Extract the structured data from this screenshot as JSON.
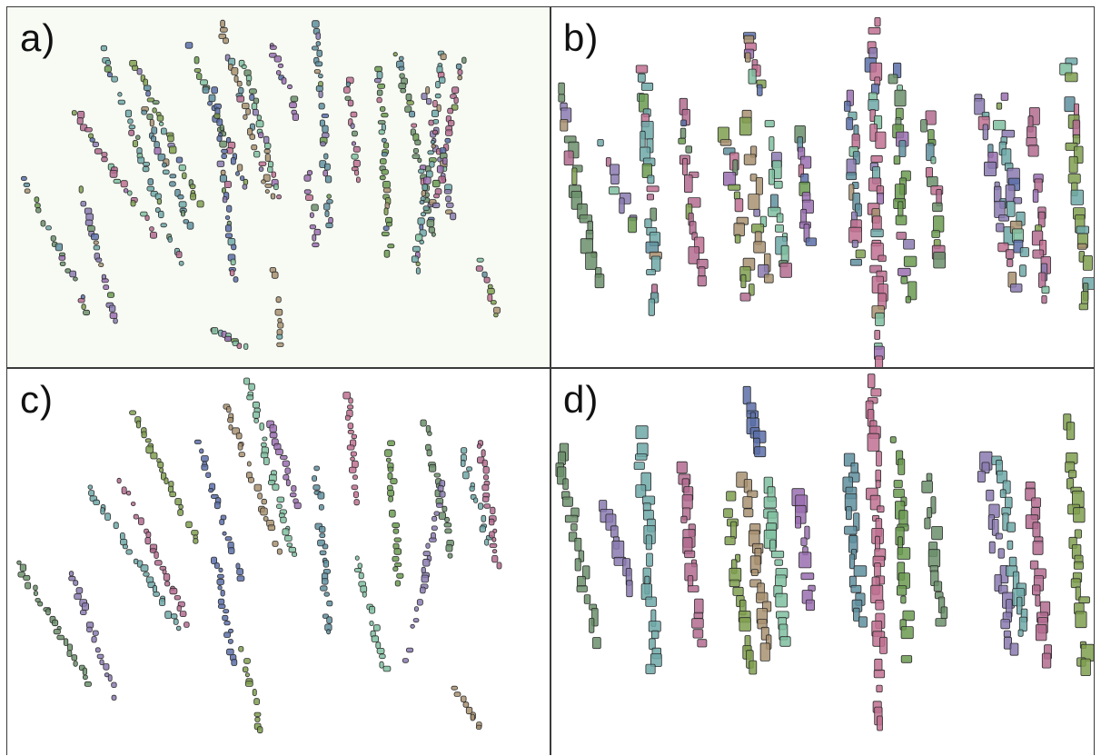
{
  "figure": {
    "panels": [
      {
        "id": "a",
        "label": "a)",
        "background": "#f7fbf4",
        "style": "mixed"
      },
      {
        "id": "b",
        "label": "b)",
        "background": "#ffffff",
        "style": "blocky-mixed"
      },
      {
        "id": "c",
        "label": "c)",
        "background": "#ffffff",
        "style": "consistent"
      },
      {
        "id": "d",
        "label": "d)",
        "background": "#ffffff",
        "style": "blocky-consistent"
      }
    ],
    "palette": [
      "#6b8f6b",
      "#8a7ab0",
      "#6fa8a8",
      "#b36b8f",
      "#7f9f4f",
      "#5a6fa8",
      "#a89070",
      "#7fbfa0",
      "#9a6fb0",
      "#5f8f9f",
      "#c07090",
      "#6a9a50"
    ],
    "divider_color": "#3a3a3a"
  }
}
